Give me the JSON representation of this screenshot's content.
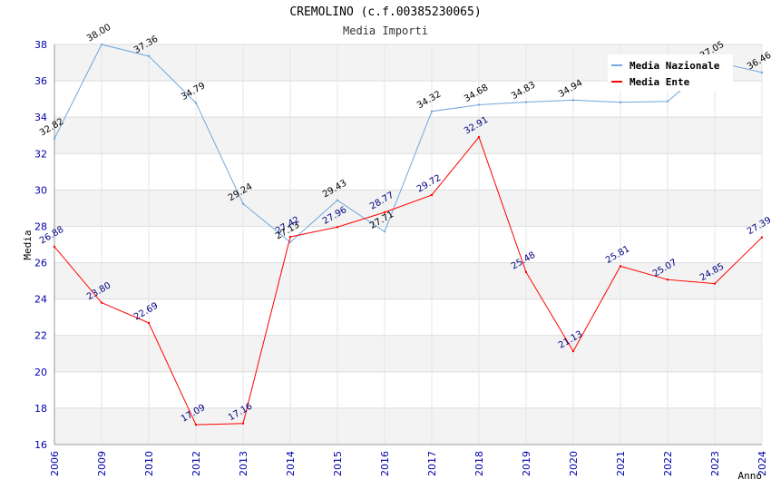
{
  "chart_data": {
    "type": "line",
    "title": "CREMOLINO (c.f.00385230065)",
    "subtitle": "Media Importi",
    "xlabel": "Anno",
    "ylabel": "Media",
    "ylim": [
      16,
      38
    ],
    "yticks": [
      16,
      18,
      20,
      22,
      24,
      26,
      28,
      30,
      32,
      34,
      36,
      38
    ],
    "categories": [
      "2006",
      "2009",
      "2010",
      "2012",
      "2013",
      "2014",
      "2015",
      "2016",
      "2017",
      "2018",
      "2019",
      "2020",
      "2021",
      "2022",
      "2023",
      "2024"
    ],
    "series": [
      {
        "name": "Media Nazionale",
        "color": "#6fa8dc",
        "values": [
          32.82,
          38.0,
          37.36,
          34.79,
          29.24,
          27.13,
          29.43,
          27.71,
          34.32,
          34.68,
          34.83,
          34.94,
          34.82,
          34.87,
          37.05,
          36.46
        ],
        "labels": [
          "32.82",
          "38.00",
          "37.36",
          "34.79",
          "29.24",
          "27.13",
          "29.43",
          "27.71",
          "34.32",
          "34.68",
          "34.83",
          "34.94",
          "",
          "",
          "37.05",
          "36.46"
        ]
      },
      {
        "name": "Media Ente",
        "color": "#ff0000",
        "values": [
          26.88,
          23.8,
          22.69,
          17.09,
          17.16,
          27.42,
          27.96,
          28.77,
          29.72,
          32.91,
          25.48,
          21.13,
          25.81,
          25.07,
          24.85,
          27.39
        ],
        "labels": [
          "26.88",
          "23.80",
          "22.69",
          "17.09",
          "17.16",
          "27.42",
          "27.96",
          "28.77",
          "29.72",
          "32.91",
          "25.48",
          "21.13",
          "25.81",
          "25.07",
          "24.85",
          "27.39"
        ]
      }
    ],
    "legend_position": "top-right",
    "grid": true
  }
}
